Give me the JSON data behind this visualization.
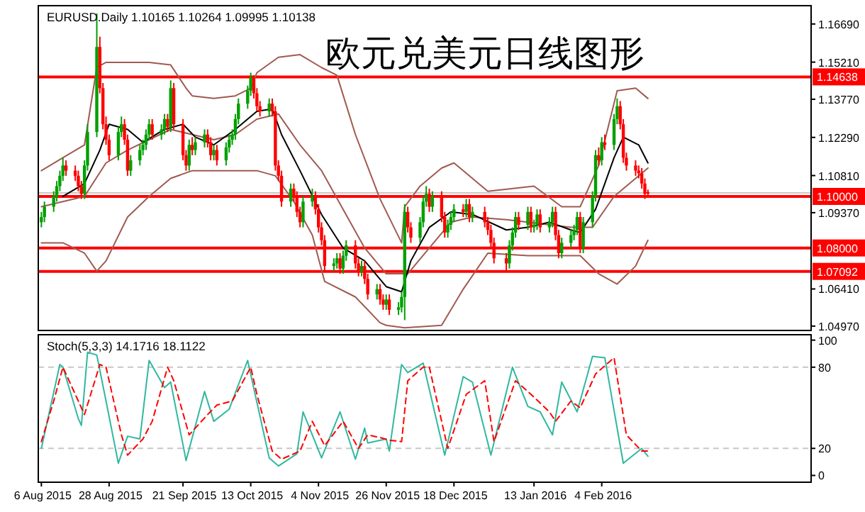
{
  "chart_data": [
    {
      "type": "candlestick",
      "title": "欧元兑美元日线图形",
      "annotations": [
        "EURUSD.Daily 1.10165 1.10264 1.09995 1.10138"
      ],
      "x": [
        "2015-08-06",
        "2015-08-07",
        "2015-08-10",
        "2015-08-11",
        "2015-08-12",
        "2015-08-13",
        "2015-08-14",
        "2015-08-17",
        "2015-08-18",
        "2015-08-19",
        "2015-08-20",
        "2015-08-21",
        "2015-08-24",
        "2015-08-25",
        "2015-08-26",
        "2015-08-27",
        "2015-08-28",
        "2015-08-31",
        "2015-09-01",
        "2015-09-02",
        "2015-09-03",
        "2015-09-04",
        "2015-09-07",
        "2015-09-08",
        "2015-09-09",
        "2015-09-10",
        "2015-09-11",
        "2015-09-14",
        "2015-09-15",
        "2015-09-16",
        "2015-09-17",
        "2015-09-18",
        "2015-09-21",
        "2015-09-22",
        "2015-09-23",
        "2015-09-24",
        "2015-09-25",
        "2015-09-28",
        "2015-09-29",
        "2015-09-30",
        "2015-10-01",
        "2015-10-02",
        "2015-10-05",
        "2015-10-06",
        "2015-10-07",
        "2015-10-08",
        "2015-10-09",
        "2015-10-12",
        "2015-10-13",
        "2015-10-14",
        "2015-10-15",
        "2015-10-16",
        "2015-10-19",
        "2015-10-20",
        "2015-10-21",
        "2015-10-22",
        "2015-10-23",
        "2015-10-26",
        "2015-10-27",
        "2015-10-28",
        "2015-10-29",
        "2015-10-30",
        "2015-11-02",
        "2015-11-03",
        "2015-11-04",
        "2015-11-05",
        "2015-11-06",
        "2015-11-09",
        "2015-11-10",
        "2015-11-11",
        "2015-11-12",
        "2015-11-13",
        "2015-11-16",
        "2015-11-17",
        "2015-11-18",
        "2015-11-19",
        "2015-11-20",
        "2015-11-23",
        "2015-11-24",
        "2015-11-25",
        "2015-11-26",
        "2015-11-27",
        "2015-11-30",
        "2015-12-01",
        "2015-12-02",
        "2015-12-03",
        "2015-12-04",
        "2015-12-07",
        "2015-12-08",
        "2015-12-09",
        "2015-12-10",
        "2015-12-11",
        "2015-12-14",
        "2015-12-15",
        "2015-12-16",
        "2015-12-17",
        "2015-12-18",
        "2015-12-21",
        "2015-12-22",
        "2015-12-23",
        "2015-12-24",
        "2015-12-28",
        "2015-12-29",
        "2015-12-30",
        "2015-12-31",
        "2016-01-04",
        "2016-01-05",
        "2016-01-06",
        "2016-01-07",
        "2016-01-08",
        "2016-01-11",
        "2016-01-12",
        "2016-01-13",
        "2016-01-14",
        "2016-01-15",
        "2016-01-18",
        "2016-01-19",
        "2016-01-20",
        "2016-01-21",
        "2016-01-22",
        "2016-01-25",
        "2016-01-26",
        "2016-01-27",
        "2016-01-28",
        "2016-01-29",
        "2016-02-01",
        "2016-02-02",
        "2016-02-03",
        "2016-02-04",
        "2016-02-05",
        "2016-02-08",
        "2016-02-09",
        "2016-02-10",
        "2016-02-11",
        "2016-02-12",
        "2016-02-15",
        "2016-02-16",
        "2016-02-17",
        "2016-02-18",
        "2016-02-19"
      ],
      "ohlc": [
        [
          1.09,
          1.094,
          1.088,
          1.092
        ],
        [
          1.092,
          1.098,
          1.09,
          1.096
        ],
        [
          1.096,
          1.102,
          1.094,
          1.1
        ],
        [
          1.1,
          1.106,
          1.098,
          1.104
        ],
        [
          1.104,
          1.11,
          1.102,
          1.108
        ],
        [
          1.108,
          1.115,
          1.106,
          1.112
        ],
        [
          1.112,
          1.114,
          1.108,
          1.11
        ],
        [
          1.11,
          1.112,
          1.106,
          1.108
        ],
        [
          1.108,
          1.11,
          1.102,
          1.104
        ],
        [
          1.104,
          1.106,
          1.099,
          1.101
        ],
        [
          1.101,
          1.114,
          1.099,
          1.112
        ],
        [
          1.112,
          1.128,
          1.11,
          1.125
        ],
        [
          1.125,
          1.171,
          1.123,
          1.158
        ],
        [
          1.158,
          1.162,
          1.14,
          1.142
        ],
        [
          1.142,
          1.144,
          1.126,
          1.128
        ],
        [
          1.128,
          1.131,
          1.12,
          1.122
        ],
        [
          1.122,
          1.124,
          1.114,
          1.116
        ],
        [
          1.116,
          1.127,
          1.114,
          1.125
        ],
        [
          1.125,
          1.131,
          1.123,
          1.128
        ],
        [
          1.128,
          1.13,
          1.12,
          1.122
        ],
        [
          1.122,
          1.124,
          1.108,
          1.11
        ],
        [
          1.11,
          1.116,
          1.108,
          1.114
        ],
        [
          1.114,
          1.12,
          1.112,
          1.118
        ],
        [
          1.118,
          1.122,
          1.116,
          1.12
        ],
        [
          1.12,
          1.126,
          1.118,
          1.124
        ],
        [
          1.124,
          1.13,
          1.122,
          1.128
        ],
        [
          1.128,
          1.13,
          1.122,
          1.124
        ],
        [
          1.124,
          1.128,
          1.122,
          1.126
        ],
        [
          1.126,
          1.132,
          1.124,
          1.13
        ],
        [
          1.13,
          1.132,
          1.125,
          1.127
        ],
        [
          1.127,
          1.145,
          1.125,
          1.142
        ],
        [
          1.142,
          1.144,
          1.126,
          1.128
        ],
        [
          1.128,
          1.13,
          1.114,
          1.116
        ],
        [
          1.116,
          1.118,
          1.11,
          1.112
        ],
        [
          1.112,
          1.122,
          1.11,
          1.12
        ],
        [
          1.12,
          1.123,
          1.116,
          1.118
        ],
        [
          1.118,
          1.123,
          1.116,
          1.121
        ],
        [
          1.121,
          1.126,
          1.119,
          1.124
        ],
        [
          1.124,
          1.126,
          1.119,
          1.121
        ],
        [
          1.121,
          1.123,
          1.114,
          1.116
        ],
        [
          1.116,
          1.12,
          1.114,
          1.118
        ],
        [
          1.118,
          1.12,
          1.112,
          1.114
        ],
        [
          1.114,
          1.121,
          1.112,
          1.119
        ],
        [
          1.119,
          1.124,
          1.117,
          1.122
        ],
        [
          1.122,
          1.126,
          1.12,
          1.124
        ],
        [
          1.124,
          1.132,
          1.122,
          1.13
        ],
        [
          1.13,
          1.138,
          1.128,
          1.136
        ],
        [
          1.136,
          1.143,
          1.134,
          1.141
        ],
        [
          1.141,
          1.148,
          1.139,
          1.146
        ],
        [
          1.146,
          1.147,
          1.138,
          1.14
        ],
        [
          1.14,
          1.142,
          1.133,
          1.135
        ],
        [
          1.135,
          1.137,
          1.131,
          1.133
        ],
        [
          1.133,
          1.138,
          1.131,
          1.136
        ],
        [
          1.136,
          1.138,
          1.131,
          1.133
        ],
        [
          1.133,
          1.135,
          1.11,
          1.112
        ],
        [
          1.112,
          1.114,
          1.106,
          1.108
        ],
        [
          1.108,
          1.11,
          1.096,
          1.098
        ],
        [
          1.098,
          1.105,
          1.096,
          1.103
        ],
        [
          1.103,
          1.105,
          1.098,
          1.1
        ],
        [
          1.1,
          1.102,
          1.092,
          1.094
        ],
        [
          1.094,
          1.096,
          1.088,
          1.09
        ],
        [
          1.09,
          1.1,
          1.088,
          1.098
        ],
        [
          1.098,
          1.103,
          1.096,
          1.1
        ],
        [
          1.1,
          1.102,
          1.093,
          1.095
        ],
        [
          1.095,
          1.097,
          1.086,
          1.088
        ],
        [
          1.088,
          1.09,
          1.081,
          1.083
        ],
        [
          1.083,
          1.085,
          1.071,
          1.073
        ],
        [
          1.073,
          1.076,
          1.071,
          1.074
        ],
        [
          1.074,
          1.078,
          1.072,
          1.076
        ],
        [
          1.076,
          1.078,
          1.07,
          1.072
        ],
        [
          1.072,
          1.079,
          1.07,
          1.077
        ],
        [
          1.077,
          1.083,
          1.075,
          1.081
        ],
        [
          1.081,
          1.083,
          1.072,
          1.074
        ],
        [
          1.074,
          1.076,
          1.069,
          1.071
        ],
        [
          1.071,
          1.075,
          1.069,
          1.073
        ],
        [
          1.073,
          1.075,
          1.066,
          1.068
        ],
        [
          1.068,
          1.07,
          1.06,
          1.062
        ],
        [
          1.062,
          1.066,
          1.06,
          1.064
        ],
        [
          1.064,
          1.066,
          1.058,
          1.06
        ],
        [
          1.06,
          1.062,
          1.056,
          1.058
        ],
        [
          1.058,
          1.062,
          1.056,
          1.06
        ],
        [
          1.06,
          1.062,
          1.054,
          1.056
        ],
        [
          1.056,
          1.059,
          1.054,
          1.057
        ],
        [
          1.057,
          1.063,
          1.055,
          1.061
        ],
        [
          1.061,
          1.097,
          1.052,
          1.094
        ],
        [
          1.094,
          1.096,
          1.086,
          1.088
        ],
        [
          1.088,
          1.09,
          1.082,
          1.084
        ],
        [
          1.084,
          1.092,
          1.082,
          1.09
        ],
        [
          1.09,
          1.1,
          1.088,
          1.098
        ],
        [
          1.098,
          1.104,
          1.096,
          1.101
        ],
        [
          1.101,
          1.103,
          1.094,
          1.096
        ],
        [
          1.096,
          1.102,
          1.094,
          1.1
        ],
        [
          1.1,
          1.102,
          1.09,
          1.092
        ],
        [
          1.092,
          1.094,
          1.084,
          1.086
        ],
        [
          1.086,
          1.091,
          1.084,
          1.089
        ],
        [
          1.089,
          1.094,
          1.087,
          1.092
        ],
        [
          1.092,
          1.097,
          1.09,
          1.095
        ],
        [
          1.095,
          1.097,
          1.092,
          1.094
        ],
        [
          1.094,
          1.099,
          1.092,
          1.097
        ],
        [
          1.097,
          1.099,
          1.09,
          1.092
        ],
        [
          1.092,
          1.096,
          1.09,
          1.094
        ],
        [
          1.094,
          1.096,
          1.088,
          1.09
        ],
        [
          1.09,
          1.092,
          1.085,
          1.087
        ],
        [
          1.087,
          1.089,
          1.08,
          1.082
        ],
        [
          1.082,
          1.084,
          1.074,
          1.076
        ],
        [
          1.076,
          1.078,
          1.071,
          1.074
        ],
        [
          1.074,
          1.083,
          1.072,
          1.081
        ],
        [
          1.081,
          1.088,
          1.079,
          1.086
        ],
        [
          1.086,
          1.094,
          1.084,
          1.092
        ],
        [
          1.092,
          1.094,
          1.087,
          1.089
        ],
        [
          1.089,
          1.096,
          1.087,
          1.094
        ],
        [
          1.094,
          1.096,
          1.086,
          1.088
        ],
        [
          1.088,
          1.091,
          1.086,
          1.089
        ],
        [
          1.089,
          1.095,
          1.087,
          1.093
        ],
        [
          1.093,
          1.095,
          1.086,
          1.088
        ],
        [
          1.088,
          1.092,
          1.086,
          1.09
        ],
        [
          1.09,
          1.096,
          1.088,
          1.094
        ],
        [
          1.094,
          1.096,
          1.083,
          1.085
        ],
        [
          1.085,
          1.087,
          1.076,
          1.078
        ],
        [
          1.078,
          1.084,
          1.076,
          1.082
        ],
        [
          1.082,
          1.087,
          1.08,
          1.085
        ],
        [
          1.085,
          1.089,
          1.083,
          1.087
        ],
        [
          1.087,
          1.094,
          1.085,
          1.092
        ],
        [
          1.092,
          1.094,
          1.078,
          1.08
        ],
        [
          1.08,
          1.092,
          1.078,
          1.09
        ],
        [
          1.09,
          1.102,
          1.088,
          1.1
        ],
        [
          1.1,
          1.118,
          1.098,
          1.116
        ],
        [
          1.116,
          1.119,
          1.112,
          1.114
        ],
        [
          1.114,
          1.123,
          1.112,
          1.121
        ],
        [
          1.121,
          1.124,
          1.118,
          1.12
        ],
        [
          1.12,
          1.132,
          1.118,
          1.13
        ],
        [
          1.13,
          1.138,
          1.128,
          1.135
        ],
        [
          1.135,
          1.137,
          1.126,
          1.128
        ],
        [
          1.128,
          1.13,
          1.113,
          1.115
        ],
        [
          1.115,
          1.117,
          1.11,
          1.112
        ],
        [
          1.112,
          1.114,
          1.108,
          1.11
        ],
        [
          1.11,
          1.112,
          1.107,
          1.109
        ],
        [
          1.109,
          1.111,
          1.103,
          1.105
        ],
        [
          1.105,
          1.107,
          1.099,
          1.101
        ],
        [
          1.10165,
          1.10264,
          1.09995,
          1.10138
        ]
      ],
      "colors": [
        "#00a000",
        "#00a000",
        "#00a000",
        "#00a000",
        "#00a000",
        "#00a000",
        "#ff0000",
        "#ff0000",
        "#ff0000",
        "#ff0000",
        "#00a000",
        "#00a000",
        "#00a000",
        "#ff0000",
        "#ff0000",
        "#ff0000",
        "#ff0000",
        "#00a000",
        "#00a000",
        "#ff0000",
        "#ff0000",
        "#00a000",
        "#00a000",
        "#00a000",
        "#00a000",
        "#00a000",
        "#ff0000",
        "#00a000",
        "#00a000",
        "#ff0000",
        "#00a000",
        "#ff0000",
        "#ff0000",
        "#ff0000",
        "#00a000",
        "#ff0000",
        "#00a000",
        "#00a000",
        "#ff0000",
        "#ff0000",
        "#00a000",
        "#ff0000",
        "#00a000",
        "#00a000",
        "#00a000",
        "#00a000",
        "#00a000",
        "#00a000",
        "#00a000",
        "#ff0000",
        "#ff0000",
        "#ff0000",
        "#00a000",
        "#ff0000",
        "#ff0000",
        "#ff0000",
        "#ff0000",
        "#00a000",
        "#ff0000",
        "#ff0000",
        "#ff0000",
        "#00a000",
        "#00a000",
        "#ff0000",
        "#ff0000",
        "#ff0000",
        "#ff0000",
        "#00a000",
        "#00a000",
        "#ff0000",
        "#00a000",
        "#00a000",
        "#ff0000",
        "#ff0000",
        "#00a000",
        "#ff0000",
        "#ff0000",
        "#00a000",
        "#ff0000",
        "#ff0000",
        "#00a000",
        "#ff0000",
        "#00a000",
        "#00a000",
        "#00a000",
        "#ff0000",
        "#ff0000",
        "#00a000",
        "#00a000",
        "#00a000",
        "#ff0000",
        "#00a000",
        "#ff0000",
        "#ff0000",
        "#00a000",
        "#00a000",
        "#00a000",
        "#ff0000",
        "#00a000",
        "#ff0000",
        "#00a000",
        "#ff0000",
        "#ff0000",
        "#ff0000",
        "#ff0000",
        "#ff0000",
        "#00a000",
        "#00a000",
        "#00a000",
        "#ff0000",
        "#00a000",
        "#ff0000",
        "#00a000",
        "#00a000",
        "#ff0000",
        "#00a000",
        "#00a000",
        "#ff0000",
        "#ff0000",
        "#00a000",
        "#00a000",
        "#00a000",
        "#00a000",
        "#ff0000",
        "#00a000",
        "#00a000",
        "#00a000",
        "#ff0000",
        "#00a000",
        "#ff0000",
        "#00a000",
        "#00a000",
        "#ff0000",
        "#ff0000",
        "#ff0000",
        "#ff0000",
        "#ff0000",
        "#ff0000",
        "#ff0000",
        "#ff0000"
      ],
      "series": [
        {
          "type": "line",
          "color": "#a05a50",
          "x": [
            "2015-08-06",
            "2015-08-13",
            "2015-08-20",
            "2015-08-24",
            "2015-08-27",
            "2015-09-03",
            "2015-09-10",
            "2015-09-17",
            "2015-09-22",
            "2015-09-24",
            "2015-10-01",
            "2015-10-08",
            "2015-10-13",
            "2015-10-15",
            "2015-10-22",
            "2015-10-29",
            "2015-11-05",
            "2015-11-10",
            "2015-11-16",
            "2015-11-24",
            "2015-12-01",
            "2015-12-02",
            "2015-12-07",
            "2015-12-14",
            "2015-12-18",
            "2015-12-29",
            "2016-01-13",
            "2016-01-22",
            "2016-01-28",
            "2016-02-03",
            "2016-02-09",
            "2016-02-15",
            "2016-02-19"
          ],
          "values": [
            1.11,
            1.115,
            1.12,
            1.15,
            1.152,
            1.152,
            1.152,
            1.151,
            1.142,
            1.139,
            1.138,
            1.139,
            1.142,
            1.148,
            1.154,
            1.155,
            1.15,
            1.147,
            1.124,
            1.099,
            1.082,
            1.096,
            1.104,
            1.111,
            1.113,
            1.102,
            1.104,
            1.096,
            1.096,
            1.112,
            1.141,
            1.142,
            1.138
          ]
        },
        {
          "type": "line",
          "color": "#a05a50",
          "x": [
            "2015-08-06",
            "2015-08-20",
            "2015-08-27",
            "2015-09-03",
            "2015-09-10",
            "2015-09-17",
            "2015-09-24",
            "2015-10-01",
            "2015-10-08",
            "2015-10-15",
            "2015-10-22",
            "2015-10-29",
            "2015-11-05",
            "2015-11-12",
            "2015-11-19",
            "2015-11-26",
            "2015-12-03",
            "2015-12-10",
            "2015-12-17",
            "2015-12-24",
            "2016-01-04",
            "2016-01-11",
            "2016-01-18",
            "2016-01-25",
            "2016-02-01",
            "2016-02-08",
            "2016-02-15",
            "2016-02-19"
          ],
          "values": [
            1.096,
            1.1,
            1.113,
            1.118,
            1.122,
            1.126,
            1.124,
            1.122,
            1.124,
            1.13,
            1.132,
            1.12,
            1.11,
            1.095,
            1.08,
            1.07,
            1.07,
            1.08,
            1.09,
            1.092,
            1.091,
            1.09,
            1.089,
            1.088,
            1.088,
            1.1,
            1.107,
            1.111
          ]
        },
        {
          "type": "line",
          "color": "#a05a50",
          "x": [
            "2015-08-06",
            "2015-08-13",
            "2015-08-20",
            "2015-08-24",
            "2015-08-27",
            "2015-09-03",
            "2015-09-10",
            "2015-09-17",
            "2015-09-24",
            "2015-10-01",
            "2015-10-08",
            "2015-10-15",
            "2015-10-21",
            "2015-10-27",
            "2015-11-02",
            "2015-11-06",
            "2015-11-16",
            "2015-11-24",
            "2015-11-26",
            "2015-12-02",
            "2015-12-14",
            "2015-12-21",
            "2015-12-29",
            "2016-01-11",
            "2016-01-21",
            "2016-01-28",
            "2016-02-03",
            "2016-02-09",
            "2016-02-15",
            "2016-02-19"
          ],
          "values": [
            1.082,
            1.082,
            1.078,
            1.071,
            1.075,
            1.092,
            1.1,
            1.107,
            1.11,
            1.11,
            1.11,
            1.11,
            1.108,
            1.098,
            1.085,
            1.067,
            1.061,
            1.051,
            1.05,
            1.049,
            1.05,
            1.064,
            1.078,
            1.077,
            1.077,
            1.077,
            1.07,
            1.066,
            1.073,
            1.083
          ]
        },
        {
          "type": "line",
          "color": "#000000",
          "x": [
            "2015-08-13",
            "2015-08-20",
            "2015-08-25",
            "2015-08-28",
            "2015-09-03",
            "2015-09-08",
            "2015-09-15",
            "2015-09-21",
            "2015-09-25",
            "2015-10-01",
            "2015-10-08",
            "2015-10-15",
            "2015-10-20",
            "2015-10-23",
            "2015-10-29",
            "2015-11-05",
            "2015-11-12",
            "2015-11-19",
            "2015-11-26",
            "2015-12-01",
            "2015-12-04",
            "2015-12-10",
            "2015-12-17",
            "2015-12-24",
            "2016-01-04",
            "2016-01-11",
            "2016-01-18",
            "2016-01-25",
            "2016-01-28",
            "2016-02-02",
            "2016-02-08",
            "2016-02-11",
            "2016-02-16",
            "2016-02-19"
          ],
          "values": [
            1.1,
            1.105,
            1.118,
            1.128,
            1.126,
            1.121,
            1.126,
            1.128,
            1.123,
            1.12,
            1.126,
            1.133,
            1.134,
            1.124,
            1.11,
            1.093,
            1.08,
            1.075,
            1.065,
            1.063,
            1.075,
            1.088,
            1.094,
            1.093,
            1.087,
            1.088,
            1.09,
            1.087,
            1.086,
            1.095,
            1.115,
            1.123,
            1.12,
            1.113
          ]
        }
      ],
      "ref_lines": [
        {
          "axis": "y",
          "value": 1.14638,
          "label": "1.14638",
          "color": "#ff0000"
        },
        {
          "axis": "y",
          "value": 1.1,
          "label": "1.10000",
          "color": "#ff0000"
        },
        {
          "axis": "y",
          "value": 1.08,
          "label": "1.08000",
          "color": "#ff0000"
        },
        {
          "axis": "y",
          "value": 1.07092,
          "label": "1.07092",
          "color": "#ff0000"
        },
        {
          "axis": "y",
          "value": 1.10138,
          "color": "#c8c8c8"
        }
      ],
      "xlim": [
        "2015-08-05",
        "2016-04-12"
      ],
      "ylim": [
        1.048,
        1.174
      ],
      "yticks": [
        {
          "value": 1.0497,
          "label": "1.04970"
        },
        {
          "value": 1.0641,
          "label": "1.06410"
        },
        {
          "value": 1.0937,
          "label": "1.09370"
        },
        {
          "value": 1.1081,
          "label": "1.10810"
        },
        {
          "value": 1.1229,
          "label": "1.12290"
        },
        {
          "value": 1.1377,
          "label": "1.13770"
        },
        {
          "value": 1.1521,
          "label": "1.15210"
        },
        {
          "value": 1.1669,
          "label": "1.16690"
        }
      ],
      "tick_labels": "y"
    },
    {
      "type": "line",
      "annotations": [
        "Stoch(5,3,3) 14.1716 18.1122"
      ],
      "series": [
        {
          "color": "#30b8a0",
          "line_style": "solid",
          "x": [
            "2015-08-06",
            "2015-08-12",
            "2015-08-13",
            "2015-08-18",
            "2015-08-19",
            "2015-08-21",
            "2015-08-24",
            "2015-08-27",
            "2015-08-31",
            "2015-09-03",
            "2015-09-07",
            "2015-09-10",
            "2015-09-15",
            "2015-09-17",
            "2015-09-22",
            "2015-09-28",
            "2015-10-01",
            "2015-10-06",
            "2015-10-12",
            "2015-10-19",
            "2015-10-22",
            "2015-10-28",
            "2015-10-30",
            "2015-11-05",
            "2015-11-11",
            "2015-11-16",
            "2015-11-19",
            "2015-11-20",
            "2015-11-26",
            "2015-11-27",
            "2015-12-01",
            "2015-12-03",
            "2015-12-08",
            "2015-12-15",
            "2015-12-21",
            "2015-12-24",
            "2015-12-30",
            "2016-01-06",
            "2016-01-11",
            "2016-01-15",
            "2016-01-19",
            "2016-01-22",
            "2016-01-27",
            "2016-02-01",
            "2016-02-05",
            "2016-02-11",
            "2016-02-17",
            "2016-02-19"
          ],
          "values": [
            20,
            82,
            80,
            42,
            37,
            91,
            89,
            55,
            9,
            29,
            27,
            85,
            65,
            69,
            11,
            62,
            40,
            49,
            85,
            13,
            7,
            16,
            47,
            13,
            47,
            12,
            35,
            24,
            27,
            18,
            82,
            76,
            83,
            15,
            73,
            69,
            15,
            80,
            51,
            47,
            30,
            69,
            47,
            88,
            87,
            9,
            20,
            14.1716
          ]
        },
        {
          "color": "#ff0000",
          "line_style": "dashed",
          "x": [
            "2015-08-06",
            "2015-08-10",
            "2015-08-13",
            "2015-08-17",
            "2015-08-20",
            "2015-08-25",
            "2015-08-27",
            "2015-09-01",
            "2015-09-03",
            "2015-09-08",
            "2015-09-11",
            "2015-09-16",
            "2015-09-18",
            "2015-09-23",
            "2015-09-29",
            "2015-10-02",
            "2015-10-07",
            "2015-10-13",
            "2015-10-15",
            "2015-10-20",
            "2015-10-23",
            "2015-10-29",
            "2015-11-02",
            "2015-11-06",
            "2015-11-12",
            "2015-11-17",
            "2015-11-20",
            "2015-11-24",
            "2015-11-27",
            "2015-12-01",
            "2015-12-03",
            "2015-12-08",
            "2015-12-10",
            "2015-12-16",
            "2015-12-22",
            "2015-12-28",
            "2015-12-31",
            "2016-01-07",
            "2016-01-12",
            "2016-01-18",
            "2016-01-20",
            "2016-01-25",
            "2016-01-28",
            "2016-02-02",
            "2016-02-08",
            "2016-02-12",
            "2016-02-17",
            "2016-02-19"
          ],
          "values": [
            25,
            55,
            80,
            60,
            45,
            82,
            80,
            30,
            15,
            27,
            40,
            80,
            70,
            30,
            45,
            52,
            55,
            80,
            60,
            18,
            12,
            18,
            40,
            22,
            40,
            20,
            30,
            28,
            26,
            25,
            70,
            80,
            80,
            20,
            60,
            70,
            25,
            70,
            60,
            47,
            40,
            55,
            50,
            75,
            87,
            30,
            18,
            18.1122
          ]
        }
      ],
      "ref_lines": [
        {
          "axis": "y",
          "value": 20,
          "color": "#c8c8c8",
          "line_style": "dashed"
        },
        {
          "axis": "y",
          "value": 80,
          "color": "#c8c8c8",
          "line_style": "dashed"
        }
      ],
      "xlim": [
        "2015-08-05",
        "2016-04-12"
      ],
      "ylim": [
        -5,
        104
      ],
      "yticks": [
        0,
        20,
        80,
        100
      ],
      "xticks": [
        {
          "value": "2015-08-06",
          "label": "6 Aug 2015"
        },
        {
          "value": "2015-08-28",
          "label": "28 Aug 2015"
        },
        {
          "value": "2015-09-21",
          "label": "21 Sep 2015"
        },
        {
          "value": "2015-10-13",
          "label": "13 Oct 2015"
        },
        {
          "value": "2015-11-04",
          "label": "4 Nov 2015"
        },
        {
          "value": "2015-11-26",
          "label": "26 Nov 2015"
        },
        {
          "value": "2015-12-18",
          "label": "18 Dec 2015"
        },
        {
          "value": "2016-01-13",
          "label": "13 Jan 2016"
        },
        {
          "value": "2016-02-04",
          "label": "4 Feb 2016"
        }
      ]
    }
  ]
}
